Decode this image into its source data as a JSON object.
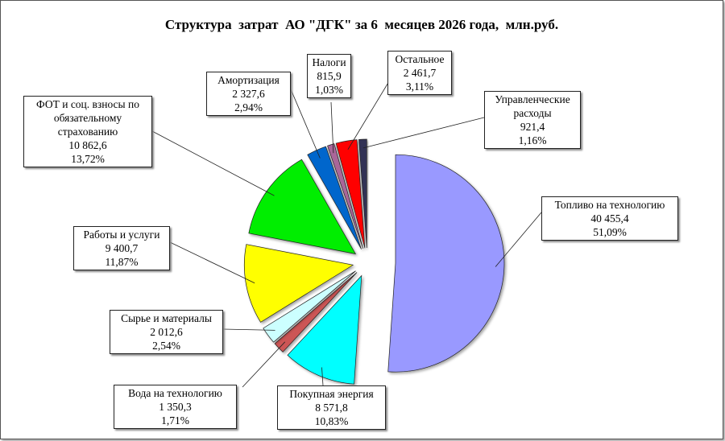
{
  "chart_data": {
    "type": "pie",
    "title": "Структура  затрат  АО \"ДГК\" за 6  месяцев 2026 года,  млн.руб.",
    "categories": [
      "Топливо на технологию",
      "Покупная  энергия",
      "Вода  на технологию",
      "Сырье и материалы",
      "Работы и услуги",
      "ФОТ и соц. взносы по обязательному страхованию",
      "Амортизация",
      "Налоги",
      "Остальное",
      "Управленческие расходы"
    ],
    "values": [
      40455.4,
      8571.8,
      1350.3,
      2012.6,
      9400.7,
      10862.6,
      2327.6,
      815.9,
      2461.7,
      921.4
    ],
    "value_labels": [
      "40 455,4",
      "8 571,8",
      "1 350,3",
      "2 012,6",
      "9 400,7",
      "10 862,6",
      "2 327,6",
      "815,9",
      "2 461,7",
      "921,4"
    ],
    "shares": [
      51.09,
      10.83,
      1.71,
      2.54,
      11.87,
      13.72,
      2.94,
      1.03,
      3.11,
      1.16
    ],
    "share_labels": [
      "51,09%",
      "10,83%",
      "1,71%",
      "2,54%",
      "11,87%",
      "13,72%",
      "2,94%",
      "1,03%",
      "3,11%",
      "1,16%"
    ],
    "colors": [
      "#9999ff",
      "#00ffff",
      "#cc5555",
      "#ccffff",
      "#ffff00",
      "#00ee00",
      "#0066cc",
      "#aa6699",
      "#ff0000",
      "#333355"
    ]
  }
}
